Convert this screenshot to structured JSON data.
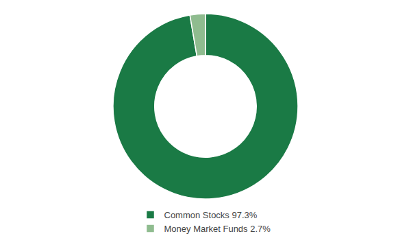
{
  "chart_data": {
    "type": "donut",
    "categories": [
      "Common Stocks 97.3%",
      "Money Market Funds 2.7%"
    ],
    "values": [
      97.3,
      2.7
    ],
    "colors": [
      "#1a7a45",
      "#8fbc8f"
    ],
    "legend": "bottom"
  }
}
